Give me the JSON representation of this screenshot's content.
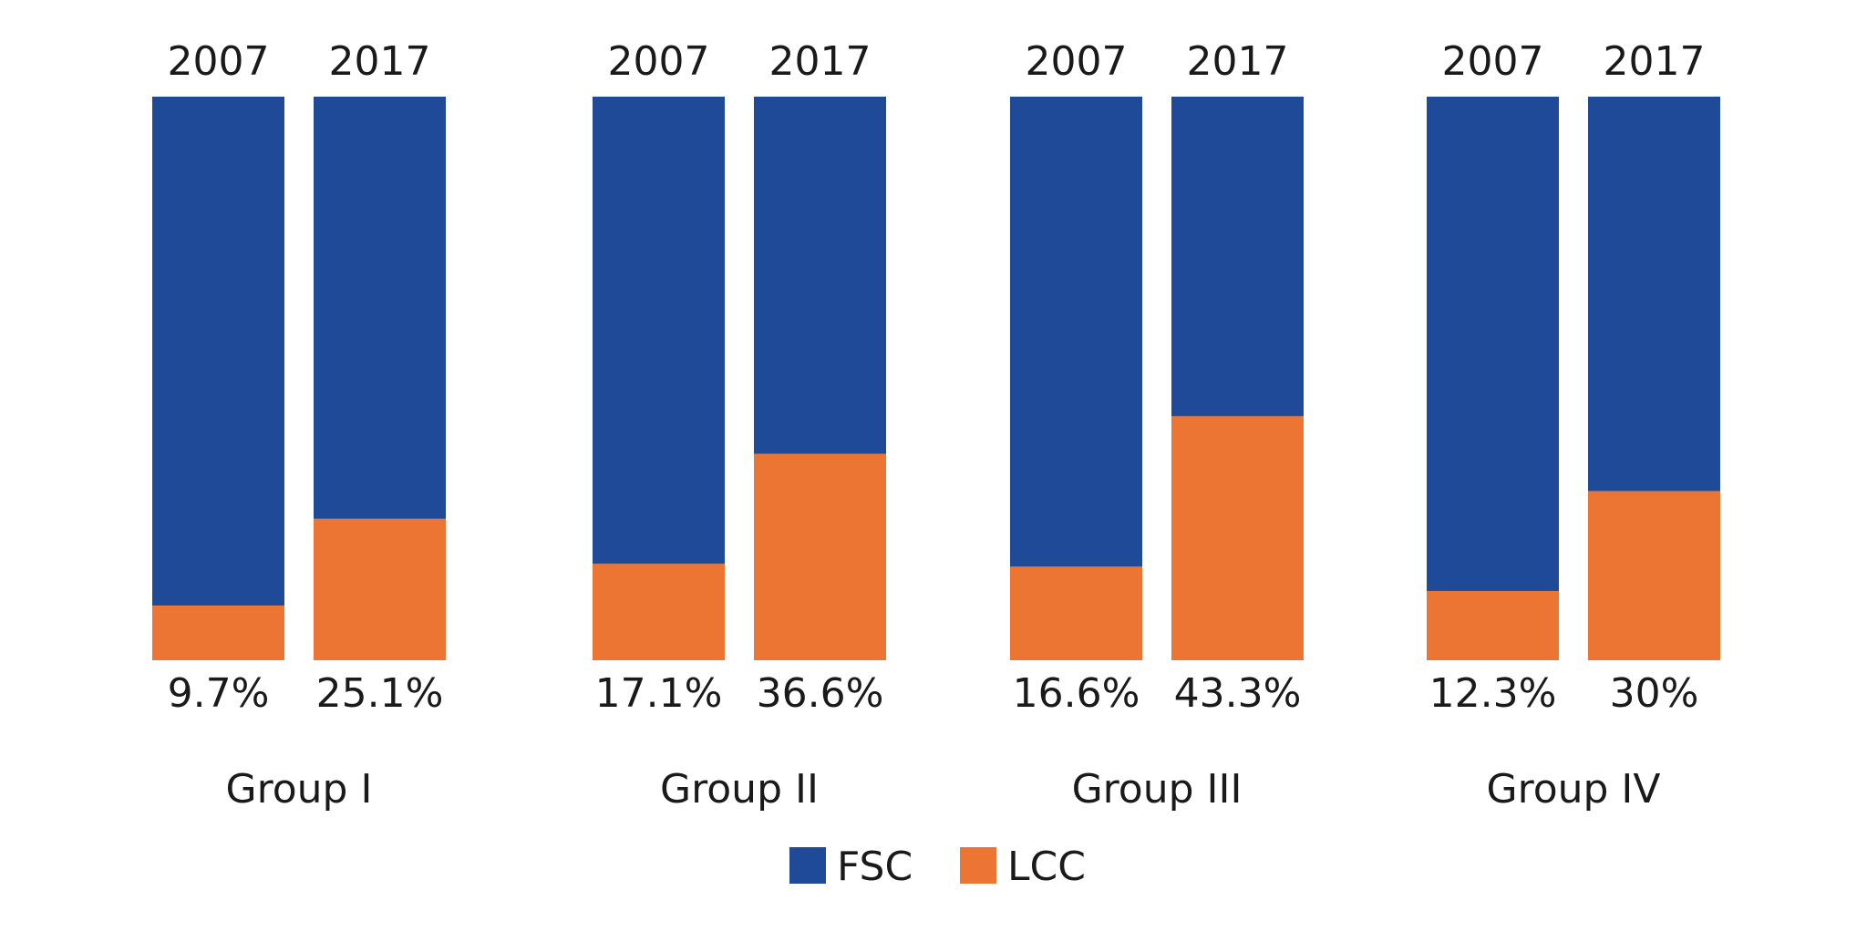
{
  "chart_data": {
    "type": "bar",
    "stacked": true,
    "normalized": true,
    "groups": [
      {
        "name": "Group I",
        "bars": [
          {
            "year": "2007",
            "LCC": 9.7,
            "FSC": 90.3,
            "label": "9.7%"
          },
          {
            "year": "2017",
            "LCC": 25.1,
            "FSC": 74.9,
            "label": "25.1%"
          }
        ]
      },
      {
        "name": "Group II",
        "bars": [
          {
            "year": "2007",
            "LCC": 17.1,
            "FSC": 82.9,
            "label": "17.1%"
          },
          {
            "year": "2017",
            "LCC": 36.6,
            "FSC": 63.4,
            "label": "36.6%"
          }
        ]
      },
      {
        "name": "Group III",
        "bars": [
          {
            "year": "2007",
            "LCC": 16.6,
            "FSC": 83.4,
            "label": "16.6%"
          },
          {
            "year": "2017",
            "LCC": 43.3,
            "FSC": 56.7,
            "label": "43.3%"
          }
        ]
      },
      {
        "name": "Group IV",
        "bars": [
          {
            "year": "2007",
            "LCC": 12.3,
            "FSC": 87.7,
            "label": "12.3%"
          },
          {
            "year": "2017",
            "LCC": 30,
            "FSC": 70,
            "label": "30%"
          }
        ]
      }
    ],
    "series": [
      {
        "name": "FSC",
        "color": "#1f4a97"
      },
      {
        "name": "LCC",
        "color": "#ed7533"
      }
    ],
    "ylim": [
      0,
      100
    ],
    "grid": false,
    "legend_position": "bottom-center"
  }
}
